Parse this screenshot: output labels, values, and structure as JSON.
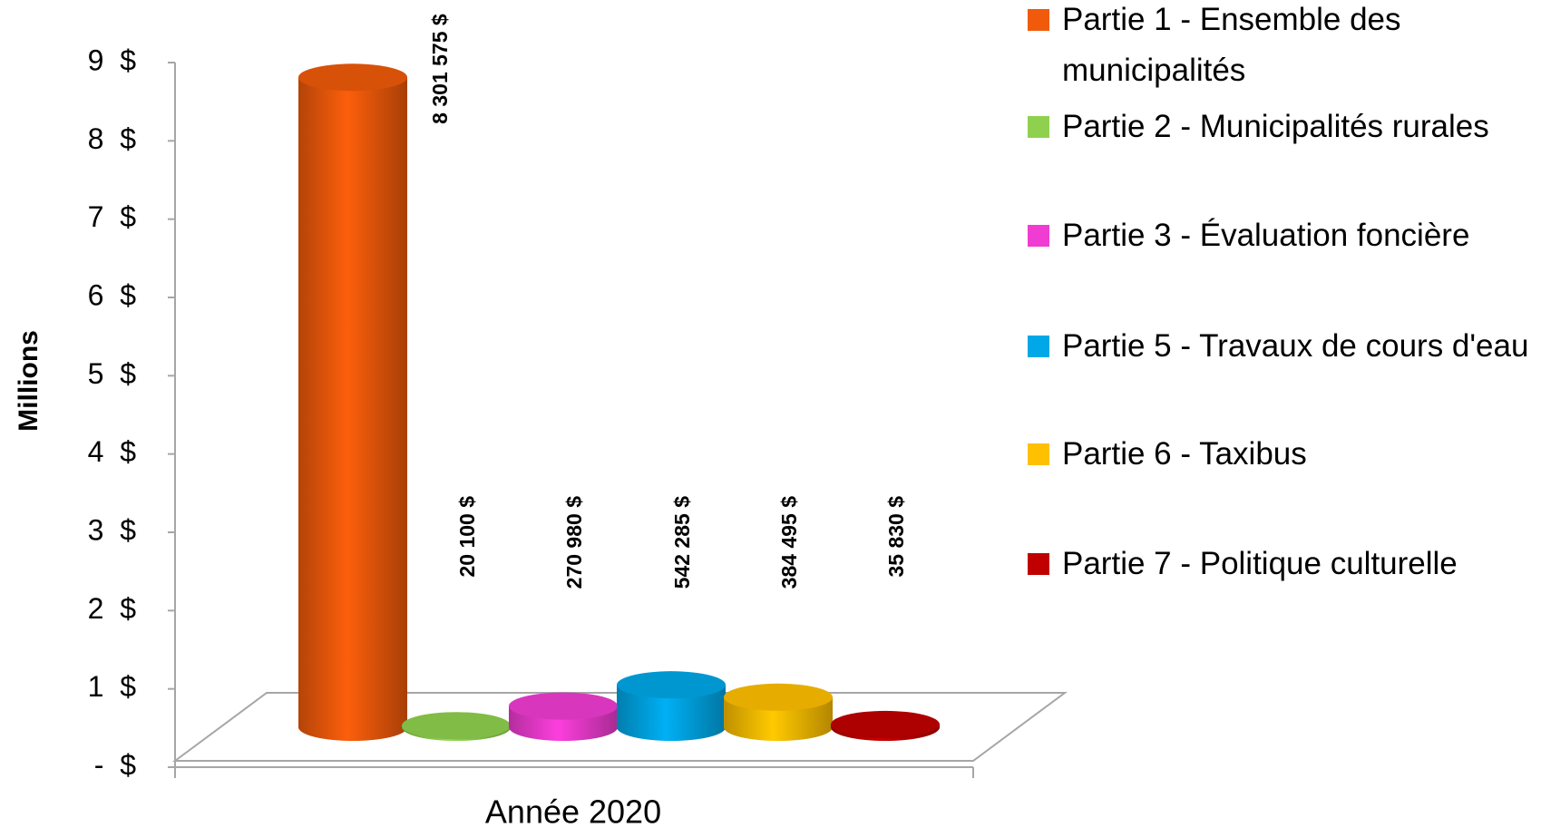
{
  "chart_data": {
    "type": "bar",
    "y_label": "Millions",
    "categories": [
      "Année 2020"
    ],
    "series": [
      {
        "name": "Partie 1 - Ensemble des municipalités",
        "color": "#f05a0a",
        "values": [
          8301575
        ],
        "value_labels": [
          "8 301 575 $"
        ]
      },
      {
        "name": "Partie 2 - Municipalités rurales",
        "color": "#8fd14f",
        "values": [
          20100
        ],
        "value_labels": [
          "20 100 $"
        ]
      },
      {
        "name": "Partie 3 - Évaluation foncière",
        "color": "#f03cd2",
        "values": [
          270980
        ],
        "value_labels": [
          "270 980 $"
        ]
      },
      {
        "name": "Partie 5 - Travaux de cours d'eau",
        "color": "#00a8e8",
        "values": [
          542285
        ],
        "value_labels": [
          "542 285 $"
        ]
      },
      {
        "name": "Partie 6 - Taxibus",
        "color": "#ffc000",
        "values": [
          384495
        ],
        "value_labels": [
          "384 495 $"
        ]
      },
      {
        "name": "Partie 7 - Politique culturelle",
        "color": "#c00000",
        "values": [
          35830
        ],
        "value_labels": [
          "35 830 $"
        ]
      }
    ],
    "ylim": [
      0,
      9000000
    ],
    "yticks": [
      {
        "value": 0,
        "label": "-  $"
      },
      {
        "value": 1000000,
        "label": "1  $"
      },
      {
        "value": 2000000,
        "label": "2  $"
      },
      {
        "value": 3000000,
        "label": "3  $"
      },
      {
        "value": 4000000,
        "label": "4  $"
      },
      {
        "value": 5000000,
        "label": "5  $"
      },
      {
        "value": 6000000,
        "label": "6  $"
      },
      {
        "value": 7000000,
        "label": "7  $"
      },
      {
        "value": 8000000,
        "label": "8  $"
      },
      {
        "value": 9000000,
        "label": "9  $"
      }
    ],
    "legend": "right"
  }
}
